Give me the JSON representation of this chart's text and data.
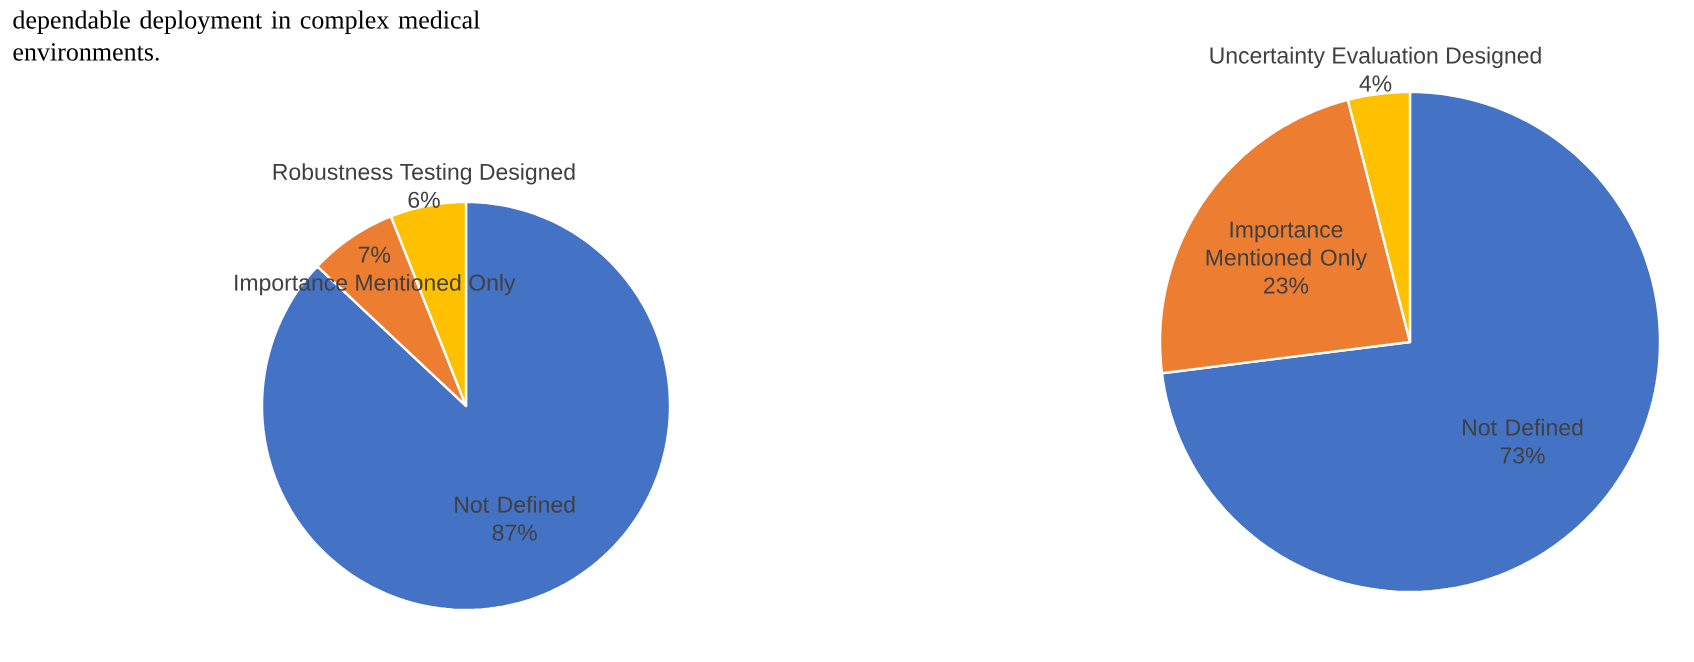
{
  "chart_data": [
    {
      "type": "pie",
      "categories": [
        "Not Defined",
        "Importance Mentioned Only",
        "Robustness Testing Designed"
      ],
      "values": [
        87,
        7,
        6
      ],
      "colors": [
        "#4472c4",
        "#ed7d31",
        "#ffc000"
      ],
      "value_labels": [
        "87%",
        "7%",
        "6%"
      ],
      "annotations": [
        "dependable deployment in complex medical environments."
      ]
    },
    {
      "type": "pie",
      "categories": [
        "Not Defined",
        "Importance Mentioned Only",
        "Uncertainty Evaluation Designed"
      ],
      "values": [
        73,
        23,
        4
      ],
      "colors": [
        "#4472c4",
        "#ed7d31",
        "#ffc000"
      ],
      "value_labels": [
        "73%",
        "23%",
        "4%"
      ]
    }
  ]
}
